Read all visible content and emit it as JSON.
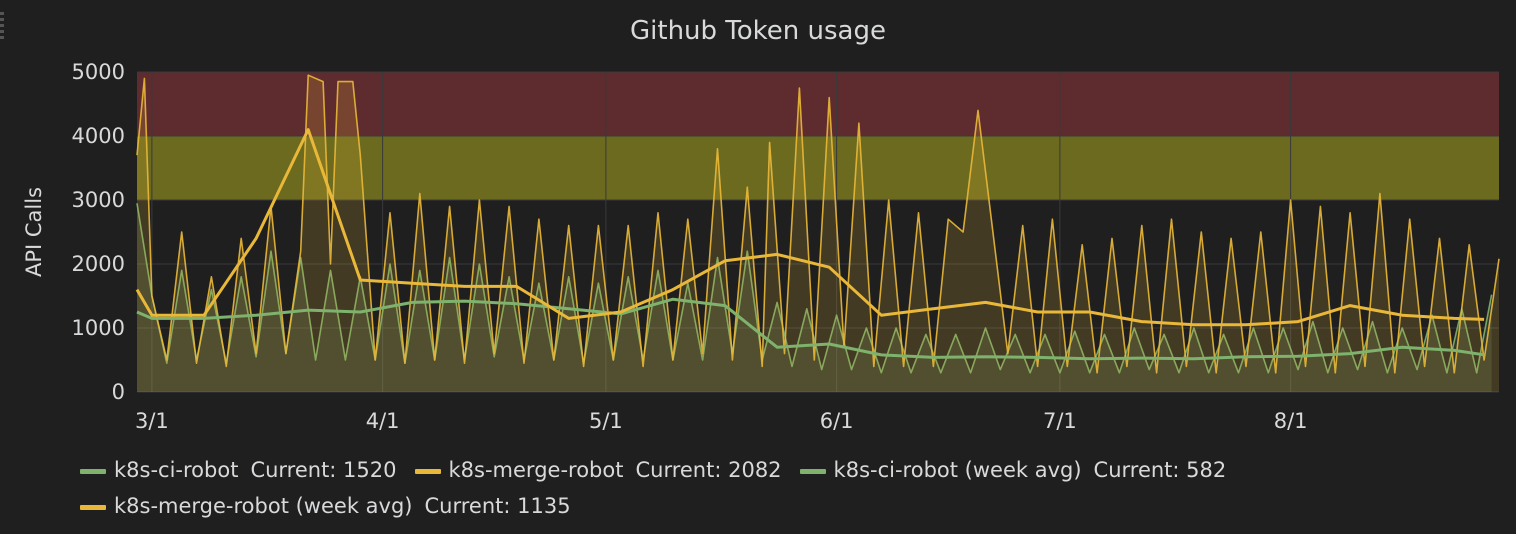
{
  "chart_data": {
    "type": "line",
    "title": "Github Token usage",
    "ylabel": "API Calls",
    "ylim": [
      0,
      5000
    ],
    "yticks": [
      0,
      1000,
      2000,
      3000,
      4000,
      5000
    ],
    "xlim": [
      "2016-02-28",
      "2016-08-29"
    ],
    "xticks": [
      {
        "label": "3/1",
        "date": "2016-03-01"
      },
      {
        "label": "4/1",
        "date": "2016-04-01"
      },
      {
        "label": "5/1",
        "date": "2016-05-01"
      },
      {
        "label": "6/1",
        "date": "2016-06-01"
      },
      {
        "label": "7/1",
        "date": "2016-07-01"
      },
      {
        "label": "8/1",
        "date": "2016-08-01"
      }
    ],
    "grid": true,
    "legend_position": "bottom",
    "thresholds": [
      {
        "from": 3000,
        "to": 4000,
        "color": "#6b6a1e"
      },
      {
        "from": 4000,
        "to": 5000,
        "color": "#5e2b2e"
      }
    ],
    "series": [
      {
        "name": "k8s-ci-robot",
        "color": "#7eb26d",
        "current": "1520",
        "kind": "raw",
        "fill": true,
        "points": [
          [
            "2016-02-28",
            2950
          ],
          [
            "2016-03-01",
            1500
          ],
          [
            "2016-03-03",
            450
          ],
          [
            "2016-03-05",
            1900
          ],
          [
            "2016-03-07",
            500
          ],
          [
            "2016-03-09",
            1600
          ],
          [
            "2016-03-11",
            450
          ],
          [
            "2016-03-13",
            1800
          ],
          [
            "2016-03-15",
            550
          ],
          [
            "2016-03-17",
            2200
          ],
          [
            "2016-03-19",
            600
          ],
          [
            "2016-03-21",
            2100
          ],
          [
            "2016-03-23",
            500
          ],
          [
            "2016-03-25",
            1900
          ],
          [
            "2016-03-27",
            500
          ],
          [
            "2016-03-29",
            1800
          ],
          [
            "2016-03-31",
            500
          ],
          [
            "2016-04-02",
            2000
          ],
          [
            "2016-04-04",
            450
          ],
          [
            "2016-04-06",
            1900
          ],
          [
            "2016-04-08",
            500
          ],
          [
            "2016-04-10",
            2100
          ],
          [
            "2016-04-12",
            500
          ],
          [
            "2016-04-14",
            2000
          ],
          [
            "2016-04-16",
            550
          ],
          [
            "2016-04-18",
            1800
          ],
          [
            "2016-04-20",
            500
          ],
          [
            "2016-04-22",
            1700
          ],
          [
            "2016-04-24",
            500
          ],
          [
            "2016-04-26",
            1800
          ],
          [
            "2016-04-28",
            450
          ],
          [
            "2016-04-30",
            1700
          ],
          [
            "2016-05-02",
            500
          ],
          [
            "2016-05-04",
            1800
          ],
          [
            "2016-05-06",
            500
          ],
          [
            "2016-05-08",
            1900
          ],
          [
            "2016-05-10",
            500
          ],
          [
            "2016-05-12",
            1700
          ],
          [
            "2016-05-14",
            500
          ],
          [
            "2016-05-16",
            2100
          ],
          [
            "2016-05-18",
            600
          ],
          [
            "2016-05-20",
            2200
          ],
          [
            "2016-05-22",
            500
          ],
          [
            "2016-05-24",
            1400
          ],
          [
            "2016-05-26",
            400
          ],
          [
            "2016-05-28",
            1300
          ],
          [
            "2016-05-30",
            350
          ],
          [
            "2016-06-01",
            1200
          ],
          [
            "2016-06-03",
            350
          ],
          [
            "2016-06-05",
            1000
          ],
          [
            "2016-06-07",
            300
          ],
          [
            "2016-06-09",
            1000
          ],
          [
            "2016-06-11",
            300
          ],
          [
            "2016-06-13",
            900
          ],
          [
            "2016-06-15",
            300
          ],
          [
            "2016-06-17",
            900
          ],
          [
            "2016-06-19",
            300
          ],
          [
            "2016-06-21",
            1000
          ],
          [
            "2016-06-23",
            350
          ],
          [
            "2016-06-25",
            900
          ],
          [
            "2016-06-27",
            300
          ],
          [
            "2016-06-29",
            900
          ],
          [
            "2016-07-01",
            300
          ],
          [
            "2016-07-03",
            950
          ],
          [
            "2016-07-05",
            300
          ],
          [
            "2016-07-07",
            900
          ],
          [
            "2016-07-09",
            300
          ],
          [
            "2016-07-11",
            1000
          ],
          [
            "2016-07-13",
            350
          ],
          [
            "2016-07-15",
            900
          ],
          [
            "2016-07-17",
            300
          ],
          [
            "2016-07-19",
            1000
          ],
          [
            "2016-07-21",
            300
          ],
          [
            "2016-07-23",
            900
          ],
          [
            "2016-07-25",
            300
          ],
          [
            "2016-07-27",
            1000
          ],
          [
            "2016-07-29",
            300
          ],
          [
            "2016-07-31",
            1000
          ],
          [
            "2016-08-02",
            350
          ],
          [
            "2016-08-04",
            1100
          ],
          [
            "2016-08-06",
            300
          ],
          [
            "2016-08-08",
            1000
          ],
          [
            "2016-08-10",
            350
          ],
          [
            "2016-08-12",
            1100
          ],
          [
            "2016-08-14",
            300
          ],
          [
            "2016-08-16",
            1000
          ],
          [
            "2016-08-18",
            350
          ],
          [
            "2016-08-20",
            1200
          ],
          [
            "2016-08-22",
            300
          ],
          [
            "2016-08-24",
            1300
          ],
          [
            "2016-08-26",
            300
          ],
          [
            "2016-08-28",
            1520
          ]
        ]
      },
      {
        "name": "k8s-merge-robot",
        "color": "#eab839",
        "current": "2082",
        "kind": "raw",
        "fill": true,
        "points": [
          [
            "2016-02-28",
            3700
          ],
          [
            "2016-02-29",
            4900
          ],
          [
            "2016-03-01",
            1500
          ],
          [
            "2016-03-03",
            500
          ],
          [
            "2016-03-05",
            2500
          ],
          [
            "2016-03-07",
            450
          ],
          [
            "2016-03-09",
            1800
          ],
          [
            "2016-03-11",
            400
          ],
          [
            "2016-03-13",
            2400
          ],
          [
            "2016-03-15",
            600
          ],
          [
            "2016-03-17",
            2900
          ],
          [
            "2016-03-19",
            600
          ],
          [
            "2016-03-21",
            2200
          ],
          [
            "2016-03-22",
            4950
          ],
          [
            "2016-03-24",
            4850
          ],
          [
            "2016-03-25",
            2000
          ],
          [
            "2016-03-26",
            4850
          ],
          [
            "2016-03-28",
            4850
          ],
          [
            "2016-03-29",
            3700
          ],
          [
            "2016-03-31",
            500
          ],
          [
            "2016-04-02",
            2800
          ],
          [
            "2016-04-04",
            450
          ],
          [
            "2016-04-06",
            3100
          ],
          [
            "2016-04-08",
            500
          ],
          [
            "2016-04-10",
            2900
          ],
          [
            "2016-04-12",
            450
          ],
          [
            "2016-04-14",
            3000
          ],
          [
            "2016-04-16",
            600
          ],
          [
            "2016-04-18",
            2900
          ],
          [
            "2016-04-20",
            450
          ],
          [
            "2016-04-22",
            2700
          ],
          [
            "2016-04-24",
            500
          ],
          [
            "2016-04-26",
            2600
          ],
          [
            "2016-04-28",
            400
          ],
          [
            "2016-04-30",
            2600
          ],
          [
            "2016-05-02",
            500
          ],
          [
            "2016-05-04",
            2600
          ],
          [
            "2016-05-06",
            400
          ],
          [
            "2016-05-08",
            2800
          ],
          [
            "2016-05-10",
            500
          ],
          [
            "2016-05-12",
            2700
          ],
          [
            "2016-05-14",
            600
          ],
          [
            "2016-05-16",
            3800
          ],
          [
            "2016-05-18",
            500
          ],
          [
            "2016-05-20",
            3200
          ],
          [
            "2016-05-22",
            400
          ],
          [
            "2016-05-23",
            3900
          ],
          [
            "2016-05-25",
            600
          ],
          [
            "2016-05-27",
            4750
          ],
          [
            "2016-05-29",
            500
          ],
          [
            "2016-05-31",
            4600
          ],
          [
            "2016-06-02",
            700
          ],
          [
            "2016-06-04",
            4200
          ],
          [
            "2016-06-06",
            400
          ],
          [
            "2016-06-08",
            3000
          ],
          [
            "2016-06-10",
            400
          ],
          [
            "2016-06-12",
            2800
          ],
          [
            "2016-06-14",
            400
          ],
          [
            "2016-06-16",
            2700
          ],
          [
            "2016-06-18",
            2500
          ],
          [
            "2016-06-20",
            4400
          ],
          [
            "2016-06-22",
            2500
          ],
          [
            "2016-06-24",
            600
          ],
          [
            "2016-06-26",
            2600
          ],
          [
            "2016-06-28",
            400
          ],
          [
            "2016-06-30",
            2700
          ],
          [
            "2016-07-02",
            400
          ],
          [
            "2016-07-04",
            2300
          ],
          [
            "2016-07-06",
            300
          ],
          [
            "2016-07-08",
            2400
          ],
          [
            "2016-07-10",
            400
          ],
          [
            "2016-07-12",
            2600
          ],
          [
            "2016-07-14",
            300
          ],
          [
            "2016-07-16",
            2700
          ],
          [
            "2016-07-18",
            400
          ],
          [
            "2016-07-20",
            2500
          ],
          [
            "2016-07-22",
            300
          ],
          [
            "2016-07-24",
            2400
          ],
          [
            "2016-07-26",
            400
          ],
          [
            "2016-07-28",
            2500
          ],
          [
            "2016-07-30",
            300
          ],
          [
            "2016-08-01",
            3000
          ],
          [
            "2016-08-03",
            400
          ],
          [
            "2016-08-05",
            2900
          ],
          [
            "2016-08-07",
            300
          ],
          [
            "2016-08-09",
            2800
          ],
          [
            "2016-08-11",
            400
          ],
          [
            "2016-08-13",
            3100
          ],
          [
            "2016-08-15",
            300
          ],
          [
            "2016-08-17",
            2700
          ],
          [
            "2016-08-19",
            400
          ],
          [
            "2016-08-21",
            2400
          ],
          [
            "2016-08-23",
            300
          ],
          [
            "2016-08-25",
            2300
          ],
          [
            "2016-08-27",
            500
          ],
          [
            "2016-08-29",
            2082
          ]
        ]
      },
      {
        "name": "k8s-ci-robot (week avg)",
        "color": "#7eb26d",
        "current": "582",
        "kind": "avg",
        "points": [
          [
            "2016-02-28",
            1250
          ],
          [
            "2016-03-01",
            1150
          ],
          [
            "2016-03-08",
            1150
          ],
          [
            "2016-03-15",
            1200
          ],
          [
            "2016-03-22",
            1280
          ],
          [
            "2016-03-29",
            1250
          ],
          [
            "2016-04-05",
            1400
          ],
          [
            "2016-04-12",
            1420
          ],
          [
            "2016-04-19",
            1380
          ],
          [
            "2016-04-26",
            1300
          ],
          [
            "2016-05-03",
            1220
          ],
          [
            "2016-05-10",
            1450
          ],
          [
            "2016-05-17",
            1350
          ],
          [
            "2016-05-24",
            700
          ],
          [
            "2016-05-31",
            750
          ],
          [
            "2016-06-07",
            580
          ],
          [
            "2016-06-14",
            540
          ],
          [
            "2016-06-21",
            550
          ],
          [
            "2016-06-28",
            540
          ],
          [
            "2016-07-05",
            520
          ],
          [
            "2016-07-12",
            530
          ],
          [
            "2016-07-19",
            520
          ],
          [
            "2016-07-26",
            550
          ],
          [
            "2016-08-02",
            560
          ],
          [
            "2016-08-09",
            600
          ],
          [
            "2016-08-16",
            700
          ],
          [
            "2016-08-23",
            650
          ],
          [
            "2016-08-27",
            582
          ]
        ]
      },
      {
        "name": "k8s-merge-robot (week avg)",
        "color": "#eab839",
        "current": "1135",
        "kind": "avg",
        "points": [
          [
            "2016-02-28",
            1600
          ],
          [
            "2016-03-01",
            1200
          ],
          [
            "2016-03-08",
            1200
          ],
          [
            "2016-03-15",
            2400
          ],
          [
            "2016-03-22",
            4100
          ],
          [
            "2016-03-29",
            1750
          ],
          [
            "2016-04-05",
            1700
          ],
          [
            "2016-04-12",
            1650
          ],
          [
            "2016-04-19",
            1650
          ],
          [
            "2016-04-26",
            1150
          ],
          [
            "2016-05-03",
            1250
          ],
          [
            "2016-05-10",
            1600
          ],
          [
            "2016-05-17",
            2050
          ],
          [
            "2016-05-24",
            2150
          ],
          [
            "2016-05-31",
            1950
          ],
          [
            "2016-06-07",
            1200
          ],
          [
            "2016-06-14",
            1300
          ],
          [
            "2016-06-21",
            1400
          ],
          [
            "2016-06-28",
            1250
          ],
          [
            "2016-07-05",
            1250
          ],
          [
            "2016-07-12",
            1100
          ],
          [
            "2016-07-19",
            1050
          ],
          [
            "2016-07-26",
            1050
          ],
          [
            "2016-08-02",
            1100
          ],
          [
            "2016-08-09",
            1350
          ],
          [
            "2016-08-16",
            1200
          ],
          [
            "2016-08-23",
            1150
          ],
          [
            "2016-08-27",
            1135
          ]
        ]
      }
    ]
  },
  "legend": {
    "current_label": "Current:"
  }
}
